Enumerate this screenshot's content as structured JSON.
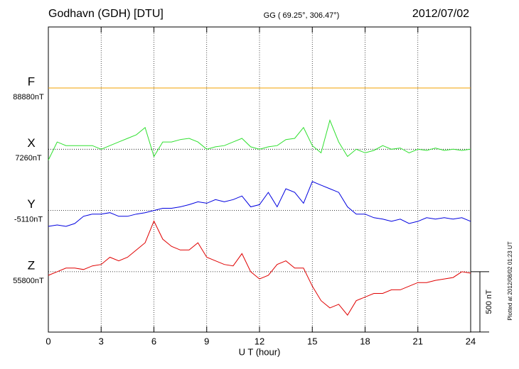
{
  "chart_data": {
    "type": "line",
    "title": "Godhavn (GDH)  [DTU]",
    "subtitle": "GG ( 69.25°, 306.47°)",
    "date": "2012/07/02",
    "x_label": "U T (hour)",
    "footnote": "Plotted at 2012/08/02 01:23 UT",
    "xlim": [
      0,
      24
    ],
    "xticks": [
      0,
      3,
      6,
      9,
      12,
      15,
      18,
      21,
      24
    ],
    "grid": true,
    "scale_bar": {
      "value": 500,
      "label": "500 nT"
    },
    "x": [
      0,
      0.5,
      1,
      1.5,
      2,
      2.5,
      3,
      3.5,
      4,
      4.5,
      5,
      5.5,
      6,
      6.5,
      7,
      7.5,
      8,
      8.5,
      9,
      9.5,
      10,
      10.5,
      11,
      11.5,
      12,
      12.5,
      13,
      13.5,
      14,
      14.5,
      15,
      15.5,
      16,
      16.5,
      17,
      17.5,
      18,
      18.5,
      19,
      19.5,
      20,
      20.5,
      21,
      21.5,
      22,
      22.5,
      23,
      23.5,
      24
    ],
    "series": [
      {
        "name": "F",
        "color": "#f0a000",
        "baseline": 88880,
        "baseline_label": "88880nT",
        "values": [
          88880,
          88880,
          88880,
          88880,
          88880,
          88880,
          88880,
          88880,
          88880,
          88880,
          88880,
          88880,
          88880,
          88880,
          88880,
          88880,
          88880,
          88880,
          88880,
          88880,
          88880,
          88880,
          88880,
          88880,
          88880,
          88880,
          88880,
          88880,
          88880,
          88880,
          88880,
          88880,
          88880,
          88880,
          88880,
          88880,
          88880,
          88880,
          88880,
          88880,
          88880,
          88880,
          88880,
          88880,
          88880,
          88880,
          88880,
          88880,
          88880
        ]
      },
      {
        "name": "X",
        "color": "#30e030",
        "baseline": 7260,
        "baseline_label": "7260nT",
        "values": [
          7170,
          7320,
          7290,
          7290,
          7290,
          7290,
          7260,
          7290,
          7320,
          7350,
          7380,
          7440,
          7200,
          7320,
          7320,
          7340,
          7350,
          7320,
          7260,
          7280,
          7290,
          7320,
          7350,
          7280,
          7260,
          7280,
          7290,
          7340,
          7350,
          7440,
          7290,
          7230,
          7500,
          7320,
          7200,
          7260,
          7230,
          7250,
          7290,
          7260,
          7270,
          7230,
          7260,
          7250,
          7270,
          7250,
          7260,
          7250,
          7260
        ]
      },
      {
        "name": "Y",
        "color": "#0000e0",
        "baseline": -5110,
        "baseline_label": "-5110nT",
        "values": [
          -5242,
          -5230,
          -5242,
          -5218,
          -5158,
          -5140,
          -5140,
          -5128,
          -5158,
          -5158,
          -5140,
          -5128,
          -5110,
          -5092,
          -5092,
          -5080,
          -5062,
          -5038,
          -5050,
          -5020,
          -5038,
          -5020,
          -4990,
          -5080,
          -5062,
          -4960,
          -5080,
          -4930,
          -4960,
          -5050,
          -4870,
          -4900,
          -4930,
          -4960,
          -5080,
          -5140,
          -5140,
          -5170,
          -5182,
          -5200,
          -5182,
          -5218,
          -5200,
          -5170,
          -5182,
          -5170,
          -5182,
          -5170,
          -5200
        ]
      },
      {
        "name": "Z",
        "color": "#e00000",
        "baseline": 55800,
        "baseline_label": "55800nT",
        "values": [
          55770,
          55800,
          55830,
          55830,
          55818,
          55848,
          55860,
          55920,
          55890,
          55920,
          55980,
          56040,
          56220,
          56070,
          56010,
          55980,
          55980,
          56040,
          55920,
          55890,
          55860,
          55848,
          55950,
          55800,
          55740,
          55770,
          55860,
          55890,
          55830,
          55830,
          55680,
          55560,
          55500,
          55530,
          55440,
          55560,
          55590,
          55620,
          55620,
          55650,
          55650,
          55680,
          55710,
          55710,
          55728,
          55740,
          55752,
          55800,
          55788
        ]
      }
    ]
  }
}
